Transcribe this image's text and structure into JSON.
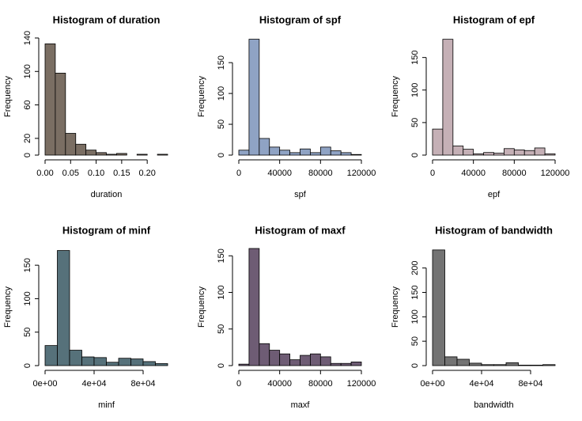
{
  "chart_data": [
    {
      "type": "histogram",
      "title": "Histogram of duration",
      "x_label": "duration",
      "y_label": "Frequency",
      "color": "#7a6e63",
      "bins": [
        0,
        0.02,
        0.04,
        0.06,
        0.08,
        0.1,
        0.12,
        0.14,
        0.16,
        0.18,
        0.2,
        0.22,
        0.24
      ],
      "values": [
        133,
        98,
        26,
        13,
        6,
        3,
        1,
        2,
        0,
        1,
        0,
        1
      ],
      "xlim": [
        0,
        0.24
      ],
      "ylim": [
        0,
        140
      ],
      "xticks": [
        {
          "value": 0,
          "label": "0.00"
        },
        {
          "value": 0.05,
          "label": "0.05"
        },
        {
          "value": 0.1,
          "label": "0.10"
        },
        {
          "value": 0.15,
          "label": "0.15"
        },
        {
          "value": 0.2,
          "label": "0.20"
        }
      ],
      "yticks": [
        0,
        20,
        60,
        100,
        140
      ]
    },
    {
      "type": "histogram",
      "title": "Histogram of spf",
      "x_label": "spf",
      "y_label": "Frequency",
      "color": "#8fa3c4",
      "bins": [
        0,
        10000,
        20000,
        30000,
        40000,
        50000,
        60000,
        70000,
        80000,
        90000,
        100000,
        110000,
        120000
      ],
      "values": [
        8,
        188,
        27,
        13,
        8,
        4,
        10,
        4,
        13,
        7,
        4,
        1
      ],
      "xlim": [
        0,
        120000
      ],
      "ylim": [
        0,
        190
      ],
      "xticks": [
        0,
        40000,
        80000,
        120000
      ],
      "yticks": [
        0,
        50,
        100,
        150
      ]
    },
    {
      "type": "histogram",
      "title": "Histogram of epf",
      "x_label": "epf",
      "y_label": "Frequency",
      "color": "#c5b0b6",
      "bins": [
        0,
        10000,
        20000,
        30000,
        40000,
        50000,
        60000,
        70000,
        80000,
        90000,
        100000,
        110000,
        120000
      ],
      "values": [
        40,
        178,
        14,
        9,
        2,
        4,
        3,
        10,
        8,
        7,
        11,
        2
      ],
      "xlim": [
        0,
        120000
      ],
      "ylim": [
        0,
        180
      ],
      "xticks": [
        0,
        40000,
        80000,
        120000
      ],
      "yticks": [
        0,
        50,
        100,
        150
      ]
    },
    {
      "type": "histogram",
      "title": "Histogram of minf",
      "x_label": "minf",
      "y_label": "Frequency",
      "color": "#56717a",
      "bins": [
        0,
        10000,
        20000,
        30000,
        40000,
        50000,
        60000,
        70000,
        80000,
        90000,
        100000
      ],
      "values": [
        30,
        172,
        23,
        13,
        12,
        5,
        11,
        10,
        6,
        3
      ],
      "xlim": [
        0,
        100000
      ],
      "ylim": [
        0,
        175
      ],
      "xticks": [
        {
          "value": 0,
          "label": "0e+00"
        },
        {
          "value": 40000,
          "label": "4e+04"
        },
        {
          "value": 80000,
          "label": "8e+04"
        }
      ],
      "yticks": [
        0,
        50,
        100,
        150
      ]
    },
    {
      "type": "histogram",
      "title": "Histogram of maxf",
      "x_label": "maxf",
      "y_label": "Frequency",
      "color": "#6e5c74",
      "bins": [
        0,
        10000,
        20000,
        30000,
        40000,
        50000,
        60000,
        70000,
        80000,
        90000,
        100000,
        110000,
        120000
      ],
      "values": [
        2,
        160,
        30,
        21,
        16,
        8,
        14,
        16,
        12,
        3,
        3,
        5
      ],
      "xlim": [
        0,
        120000
      ],
      "ylim": [
        0,
        160
      ],
      "xticks": [
        0,
        40000,
        80000,
        120000
      ],
      "yticks": [
        0,
        50,
        100,
        150
      ]
    },
    {
      "type": "histogram",
      "title": "Histogram of bandwidth",
      "x_label": "bandwidth",
      "y_label": "Frequency",
      "color": "#737373",
      "bins": [
        0,
        10000,
        20000,
        30000,
        40000,
        50000,
        60000,
        70000,
        80000,
        90000,
        100000
      ],
      "values": [
        237,
        18,
        13,
        5,
        2,
        2,
        6,
        1,
        1,
        2
      ],
      "xlim": [
        0,
        100000
      ],
      "ylim": [
        0,
        240
      ],
      "xticks": [
        {
          "value": 0,
          "label": "0e+00"
        },
        {
          "value": 40000,
          "label": "4e+04"
        },
        {
          "value": 80000,
          "label": "8e+04"
        }
      ],
      "yticks": [
        0,
        50,
        100,
        150,
        200
      ]
    }
  ]
}
